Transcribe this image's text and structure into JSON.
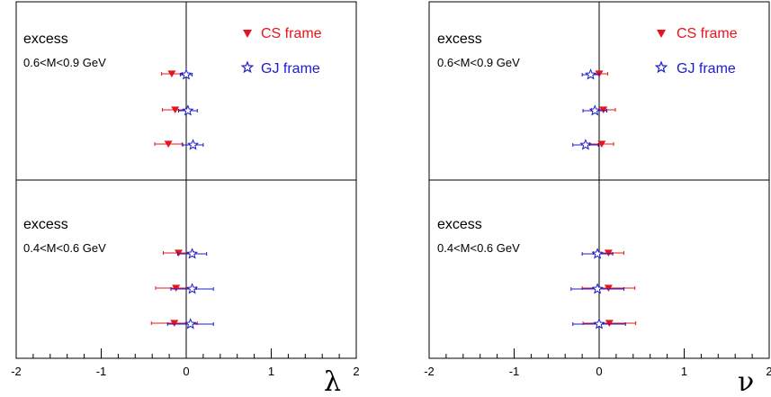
{
  "chart_data": [
    {
      "type": "scatter",
      "symbol": "λ",
      "xlim": [
        -2,
        2
      ],
      "xticks": [
        "-2",
        "-1",
        "0",
        "1",
        "2"
      ],
      "legend": {
        "cs": "CS frame",
        "gj": "GJ frame"
      },
      "colors": {
        "cs": "#e8141c",
        "gj": "#1c1ccc"
      },
      "panels": [
        {
          "title": "excess",
          "subtitle": "0.6<M<0.9 GeV",
          "rows": [
            {
              "cs": -0.17,
              "cs_err": 0.12,
              "gj": 0.0,
              "gj_err": 0.07
            },
            {
              "cs": -0.13,
              "cs_err": 0.15,
              "gj": 0.02,
              "gj_err": 0.11
            },
            {
              "cs": -0.21,
              "cs_err": 0.16,
              "gj": 0.08,
              "gj_err": 0.12
            }
          ]
        },
        {
          "title": "excess",
          "subtitle": "0.4<M<0.6 GeV",
          "rows": [
            {
              "cs": -0.09,
              "cs_err": 0.18,
              "gj": 0.07,
              "gj_err": 0.17
            },
            {
              "cs": -0.12,
              "cs_err": 0.24,
              "gj": 0.07,
              "gj_err": 0.25
            },
            {
              "cs": -0.14,
              "cs_err": 0.27,
              "gj": 0.05,
              "gj_err": 0.27
            }
          ]
        }
      ]
    },
    {
      "type": "scatter",
      "symbol": "ν",
      "xlim": [
        -2,
        2
      ],
      "xticks": [
        "-2",
        "-1",
        "0",
        "1",
        "2"
      ],
      "legend": {
        "cs": "CS frame",
        "gj": "GJ frame"
      },
      "colors": {
        "cs": "#e8141c",
        "gj": "#1c1ccc"
      },
      "panels": [
        {
          "title": "excess",
          "subtitle": "0.6<M<0.9 GeV",
          "rows": [
            {
              "cs": 0.0,
              "cs_err": 0.1,
              "gj": -0.1,
              "gj_err": 0.1
            },
            {
              "cs": 0.05,
              "cs_err": 0.14,
              "gj": -0.05,
              "gj_err": 0.14
            },
            {
              "cs": 0.03,
              "cs_err": 0.14,
              "gj": -0.16,
              "gj_err": 0.15
            }
          ]
        },
        {
          "title": "excess",
          "subtitle": "0.4<M<0.6 GeV",
          "rows": [
            {
              "cs": 0.11,
              "cs_err": 0.18,
              "gj": -0.02,
              "gj_err": 0.18
            },
            {
              "cs": 0.11,
              "cs_err": 0.31,
              "gj": -0.02,
              "gj_err": 0.31
            },
            {
              "cs": 0.12,
              "cs_err": 0.31,
              "gj": 0.0,
              "gj_err": 0.31
            }
          ]
        }
      ]
    }
  ]
}
